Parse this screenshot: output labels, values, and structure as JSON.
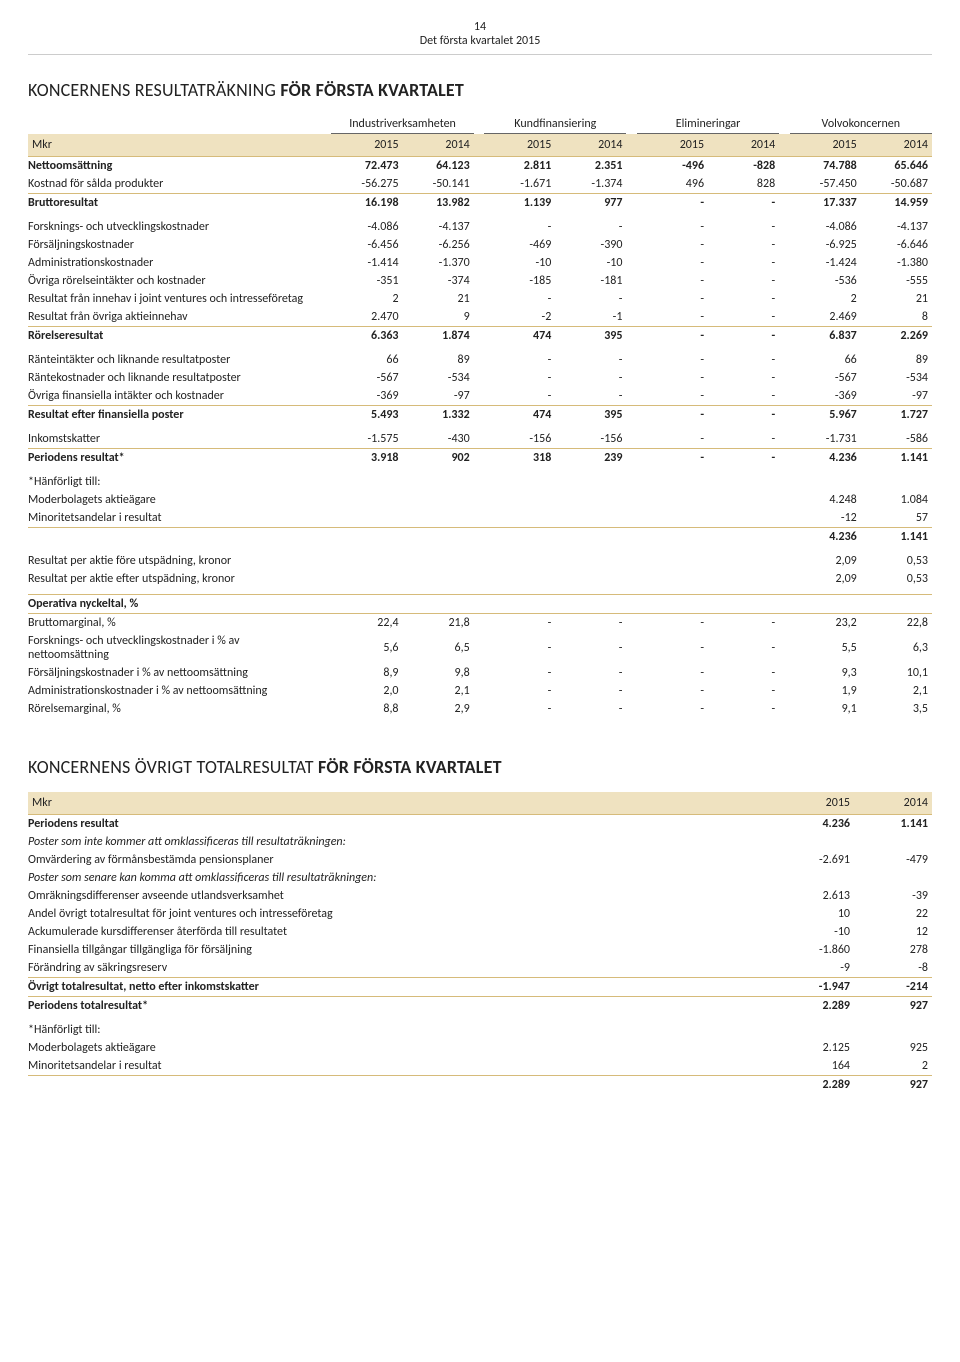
{
  "page": {
    "number": "14",
    "subtitle": "Det första kvartalet 2015"
  },
  "sec1": {
    "title_a": "KONCERNENS RESULTATRÄKNING ",
    "title_b": "FÖR FÖRSTA KVARTALET",
    "groups": [
      "Industriverksamheten",
      "Kundfinansiering",
      "Elimineringar",
      "Volvokoncernen"
    ],
    "mkr": "Mkr",
    "years": [
      "2015",
      "2014",
      "2015",
      "2014",
      "2015",
      "2014",
      "2015",
      "2014"
    ],
    "rows": [
      {
        "label": "Nettoomsättning",
        "bold": true,
        "bt": true,
        "v": [
          "72.473",
          "64.123",
          "2.811",
          "2.351",
          "-496",
          "-828",
          "74.788",
          "65.646"
        ]
      },
      {
        "label": "Kostnad för sålda produkter",
        "v": [
          "-56.275",
          "-50.141",
          "-1.671",
          "-1.374",
          "496",
          "828",
          "-57.450",
          "-50.687"
        ]
      },
      {
        "label": "Bruttoresultat",
        "bold": true,
        "bt": true,
        "v": [
          "16.198",
          "13.982",
          "1.139",
          "977",
          "-",
          "-",
          "17.337",
          "14.959"
        ]
      },
      {
        "spacer": true
      },
      {
        "label": "Forsknings- och utvecklingskostnader",
        "v": [
          "-4.086",
          "-4.137",
          "-",
          "-",
          "-",
          "-",
          "-4.086",
          "-4.137"
        ]
      },
      {
        "label": "Försäljningskostnader",
        "v": [
          "-6.456",
          "-6.256",
          "-469",
          "-390",
          "-",
          "-",
          "-6.925",
          "-6.646"
        ]
      },
      {
        "label": "Administrationskostnader",
        "v": [
          "-1.414",
          "-1.370",
          "-10",
          "-10",
          "-",
          "-",
          "-1.424",
          "-1.380"
        ]
      },
      {
        "label": "Övriga rörelseintäkter och kostnader",
        "v": [
          "-351",
          "-374",
          "-185",
          "-181",
          "-",
          "-",
          "-536",
          "-555"
        ]
      },
      {
        "label": "Resultat från innehav i joint ventures och intresseföretag",
        "v": [
          "2",
          "21",
          "-",
          "-",
          "-",
          "-",
          "2",
          "21"
        ]
      },
      {
        "label": "Resultat från övriga aktieinnehav",
        "v": [
          "2.470",
          "9",
          "-2",
          "-1",
          "-",
          "-",
          "2.469",
          "8"
        ]
      },
      {
        "label": "Rörelseresultat",
        "bold": true,
        "bt": true,
        "v": [
          "6.363",
          "1.874",
          "474",
          "395",
          "-",
          "-",
          "6.837",
          "2.269"
        ]
      },
      {
        "spacer": true
      },
      {
        "label": "Ränteintäkter och liknande resultatposter",
        "v": [
          "66",
          "89",
          "-",
          "-",
          "-",
          "-",
          "66",
          "89"
        ]
      },
      {
        "label": "Räntekostnader och liknande resultatposter",
        "v": [
          "-567",
          "-534",
          "-",
          "-",
          "-",
          "-",
          "-567",
          "-534"
        ]
      },
      {
        "label": "Övriga finansiella intäkter och kostnader",
        "v": [
          "-369",
          "-97",
          "-",
          "-",
          "-",
          "-",
          "-369",
          "-97"
        ]
      },
      {
        "label": "Resultat efter finansiella poster",
        "bold": true,
        "bt": true,
        "v": [
          "5.493",
          "1.332",
          "474",
          "395",
          "-",
          "-",
          "5.967",
          "1.727"
        ]
      },
      {
        "spacer": true
      },
      {
        "label": "Inkomstskatter",
        "v": [
          "-1.575",
          "-430",
          "-156",
          "-156",
          "-",
          "-",
          "-1.731",
          "-586"
        ]
      },
      {
        "label": "Periodens resultat*",
        "bold": true,
        "bt": true,
        "v": [
          "3.918",
          "902",
          "318",
          "239",
          "-",
          "-",
          "4.236",
          "1.141"
        ]
      },
      {
        "spacer": true
      },
      {
        "label": "*Hänförligt till:",
        "v": [
          "",
          "",
          "",
          "",
          "",
          "",
          "",
          ""
        ]
      },
      {
        "label": "Moderbolagets aktieägare",
        "v": [
          "",
          "",
          "",
          "",
          "",
          "",
          "4.248",
          "1.084"
        ]
      },
      {
        "label": "Minoritetsandelar i resultat",
        "v": [
          "",
          "",
          "",
          "",
          "",
          "",
          "-12",
          "57"
        ]
      },
      {
        "label": "",
        "bold": true,
        "bt": true,
        "v": [
          "",
          "",
          "",
          "",
          "",
          "",
          "4.236",
          "1.141"
        ]
      },
      {
        "spacer": true
      },
      {
        "label": "Resultat per aktie före utspädning, kronor",
        "v": [
          "",
          "",
          "",
          "",
          "",
          "",
          "2,09",
          "0,53"
        ]
      },
      {
        "label": "Resultat per aktie efter utspädning, kronor",
        "v": [
          "",
          "",
          "",
          "",
          "",
          "",
          "2,09",
          "0,53"
        ]
      },
      {
        "spacer": true
      },
      {
        "label": "Operativa nyckeltal, %",
        "bold": true,
        "bt": true,
        "v": [
          "",
          "",
          "",
          "",
          "",
          "",
          "",
          ""
        ]
      },
      {
        "label": "Bruttomarginal, %",
        "bt": true,
        "v": [
          "22,4",
          "21,8",
          "-",
          "-",
          "-",
          "-",
          "23,2",
          "22,8"
        ]
      },
      {
        "label": "Forsknings- och utvecklingskostnader i % av nettoomsättning",
        "v": [
          "5,6",
          "6,5",
          "-",
          "-",
          "-",
          "-",
          "5,5",
          "6,3"
        ]
      },
      {
        "label": "Försäljningskostnader i % av nettoomsättning",
        "v": [
          "8,9",
          "9,8",
          "-",
          "-",
          "-",
          "-",
          "9,3",
          "10,1"
        ]
      },
      {
        "label": "Administrationskostnader i % av nettoomsättning",
        "v": [
          "2,0",
          "2,1",
          "-",
          "-",
          "-",
          "-",
          "1,9",
          "2,1"
        ]
      },
      {
        "label": "Rörelsemarginal, %",
        "v": [
          "8,8",
          "2,9",
          "-",
          "-",
          "-",
          "-",
          "9,1",
          "3,5"
        ]
      }
    ]
  },
  "sec2": {
    "title_a": "KONCERNENS ÖVRIGT TOTALRESULTAT ",
    "title_b": "FÖR FÖRSTA KVARTALET",
    "mkr": "Mkr",
    "years": [
      "2015",
      "2014"
    ],
    "rows": [
      {
        "label": "Periodens resultat",
        "bold": true,
        "bt": true,
        "v": [
          "4.236",
          "1.141"
        ]
      },
      {
        "label": "Poster som inte kommer att omklassificeras till resultaträkningen:",
        "italic": true,
        "v": [
          "",
          ""
        ]
      },
      {
        "label": "  Omvärdering av förmånsbestämda pensionsplaner",
        "v": [
          "-2.691",
          "-479"
        ]
      },
      {
        "label": "Poster som senare kan komma att omklassificeras till resultaträkningen:",
        "italic": true,
        "v": [
          "",
          ""
        ]
      },
      {
        "label": "  Omräkningsdifferenser avseende utlandsverksamhet",
        "v": [
          "2.613",
          "-39"
        ]
      },
      {
        "label": "  Andel övrigt totalresultat för joint ventures och intresseföretag",
        "v": [
          "10",
          "22"
        ]
      },
      {
        "label": "  Ackumulerade kursdifferenser återförda till resultatet",
        "v": [
          "-10",
          "12"
        ]
      },
      {
        "label": "  Finansiella tillgångar tillgängliga för försäljning",
        "v": [
          "-1.860",
          "278"
        ]
      },
      {
        "label": "  Förändring av säkringsreserv",
        "v": [
          "-9",
          "-8"
        ]
      },
      {
        "label": "Övrigt totalresultat, netto efter inkomstskatter",
        "bold": true,
        "bt": true,
        "v": [
          "-1.947",
          "-214"
        ]
      },
      {
        "label": "Periodens totalresultat*",
        "bold": true,
        "bt": true,
        "v": [
          "2.289",
          "927"
        ]
      },
      {
        "spacer": true
      },
      {
        "label": "*Hänförligt till:",
        "v": [
          "",
          ""
        ]
      },
      {
        "label": "Moderbolagets aktieägare",
        "v": [
          "2.125",
          "925"
        ]
      },
      {
        "label": "Minoritetsandelar i resultat",
        "v": [
          "164",
          "2"
        ]
      },
      {
        "label": "",
        "bold": true,
        "bt": true,
        "v": [
          "2.289",
          "927"
        ]
      }
    ]
  }
}
